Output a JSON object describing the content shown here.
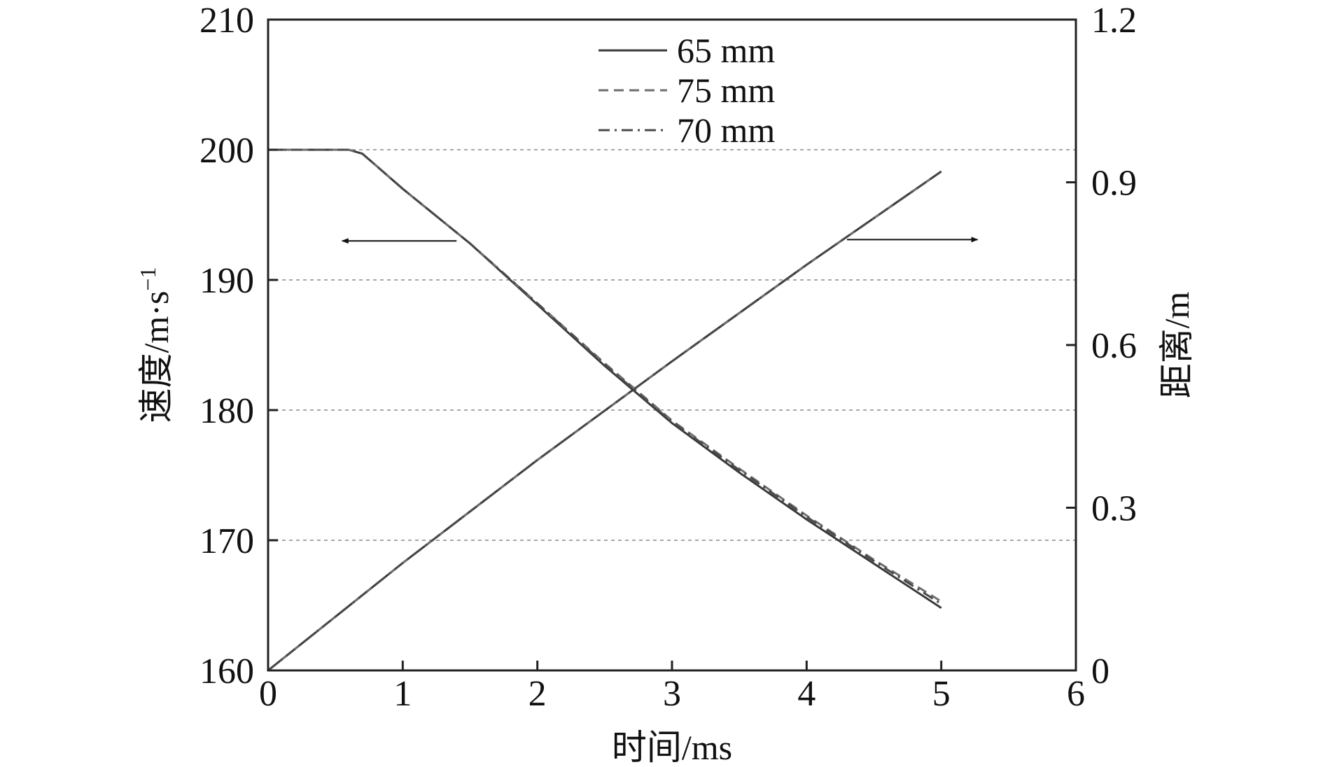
{
  "chart_data": {
    "type": "line",
    "title": "",
    "xlabel": "时间/ms",
    "ylabel_left": "速度/m·s",
    "ylabel_left_sup": "−1",
    "ylabel_right": "距离/m",
    "xlim": [
      0,
      6
    ],
    "ylim_left": [
      160,
      210
    ],
    "ylim_right": [
      0,
      1.2
    ],
    "x_ticks": [
      "0",
      "1",
      "2",
      "3",
      "4",
      "5",
      "6"
    ],
    "y_left_ticks": [
      "160",
      "170",
      "180",
      "190",
      "200",
      "210"
    ],
    "y_right_ticks": [
      "0",
      "0.3",
      "0.6",
      "0.9",
      "1.2"
    ],
    "grid": "horizontal dashed at left-axis ticks 170–200",
    "legend_position": "top-center",
    "arrows": [
      {
        "direction": "left",
        "meaning": "velocity curves use left axis"
      },
      {
        "direction": "right",
        "meaning": "distance curves use right axis"
      }
    ],
    "series": [
      {
        "name": "65 mm",
        "style": "solid",
        "color": "#3a3a3a",
        "velocity": {
          "x": [
            0,
            0.6,
            0.7,
            0.8,
            1.0,
            1.5,
            2.0,
            2.5,
            3.0,
            3.5,
            4.0,
            4.5,
            5.0
          ],
          "y": [
            200,
            200,
            199.7,
            198.8,
            197.0,
            192.8,
            188.1,
            183.4,
            179.0,
            175.2,
            171.6,
            168.2,
            164.8
          ]
        },
        "distance": {
          "x": [
            0,
            1,
            2,
            3,
            4,
            5
          ],
          "y": [
            0,
            0.198,
            0.388,
            0.57,
            0.748,
            0.92
          ]
        }
      },
      {
        "name": "75 mm",
        "style": "dashed",
        "color": "#6e6e6e",
        "velocity": {
          "x": [
            0,
            0.6,
            0.7,
            0.8,
            1.0,
            1.5,
            2.0,
            2.5,
            3.0,
            3.5,
            4.0,
            4.5,
            5.0
          ],
          "y": [
            200,
            200,
            199.7,
            198.8,
            197.0,
            192.8,
            188.2,
            183.6,
            179.2,
            175.5,
            171.9,
            168.5,
            165.3
          ]
        },
        "distance": {
          "x": [
            0,
            1,
            2,
            3,
            4,
            5
          ],
          "y": [
            0,
            0.198,
            0.388,
            0.57,
            0.748,
            0.92
          ]
        }
      },
      {
        "name": "70 mm",
        "style": "dashdot",
        "color": "#4a4a4a",
        "velocity": {
          "x": [
            0,
            0.6,
            0.7,
            0.8,
            1.0,
            1.5,
            2.0,
            2.5,
            3.0,
            3.5,
            4.0,
            4.5,
            5.0
          ],
          "y": [
            200,
            200,
            199.7,
            198.8,
            197.0,
            192.8,
            188.2,
            183.5,
            179.1,
            175.4,
            171.8,
            168.4,
            165.1
          ]
        },
        "distance": {
          "x": [
            0,
            1,
            2,
            3,
            4,
            5
          ],
          "y": [
            0,
            0.198,
            0.388,
            0.57,
            0.748,
            0.92
          ]
        }
      }
    ]
  }
}
